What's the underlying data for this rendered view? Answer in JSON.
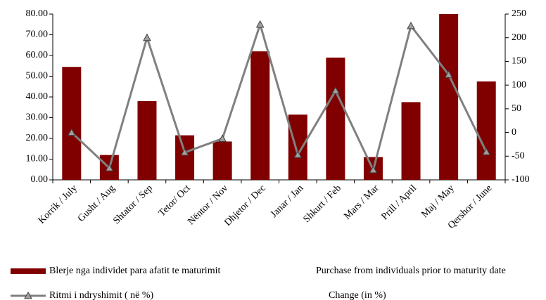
{
  "chart_data": {
    "type": "bar_line",
    "categories": [
      "Korrik / July",
      "Gusht / Aug",
      "Shtator / Sep",
      "Tetor/ Oct",
      "Nëntor / Nov",
      "Dhjetor / Dec",
      "Janar / Jan",
      "Shkurt / Feb",
      "Mars / Mar",
      "Prill / April",
      "Maj / May",
      "Qershor / June"
    ],
    "series": [
      {
        "name": "Blerje nga individet para afatit te maturimit",
        "translation": "Purchase from individuals prior to maturity date",
        "type": "bar",
        "color": "#800000",
        "values": [
          54.5,
          12,
          38,
          21.5,
          18.5,
          62,
          31.5,
          59,
          11,
          37.5,
          80,
          47.5
        ]
      },
      {
        "name": "Ritmi i ndryshimit ( në %)",
        "translation": "Change (in %)",
        "type": "line",
        "axis": "y2",
        "color": "#808080",
        "values": [
          0,
          -75,
          200,
          -42,
          -13,
          228,
          -47,
          88,
          -79,
          225,
          122,
          -41
        ]
      }
    ],
    "ylim": [
      0,
      80
    ],
    "yticks": [
      {
        "value": 0,
        "label": "0.00"
      },
      {
        "value": 10,
        "label": "10.00"
      },
      {
        "value": 20,
        "label": "20.00"
      },
      {
        "value": 30,
        "label": "30.00"
      },
      {
        "value": 40,
        "label": "40.00"
      },
      {
        "value": 50,
        "label": "50.00"
      },
      {
        "value": 60,
        "label": "60.00"
      },
      {
        "value": 70,
        "label": "70.00"
      },
      {
        "value": 80,
        "label": "80.00"
      }
    ],
    "y2lim": [
      -100,
      250
    ],
    "y2ticks": [
      -100,
      -50,
      0,
      50,
      100,
      150,
      200,
      250
    ],
    "grid": false
  }
}
